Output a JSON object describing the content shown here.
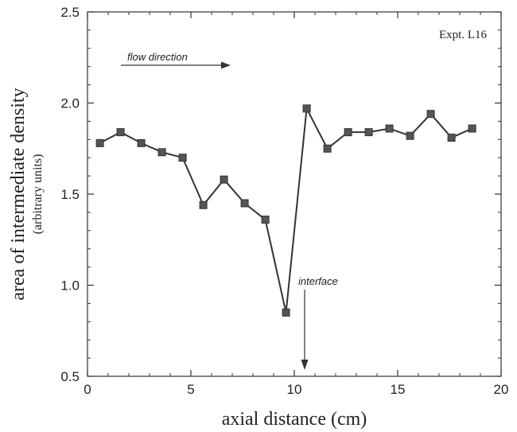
{
  "chart_data": {
    "type": "line",
    "xlabel": "axial distance  (cm)",
    "ylabel": "area of intermediate density",
    "ylabel_sub": "(arbitrary units)",
    "xlim": [
      0,
      20
    ],
    "ylim": [
      0.5,
      2.5
    ],
    "xticks": [
      "0",
      "5",
      "10",
      "15",
      "20"
    ],
    "yticks": [
      "0.5",
      "1.0",
      "1.5",
      "2.0",
      "2.5"
    ],
    "grid": false,
    "series": [
      {
        "marker": "square",
        "color": "#333333",
        "x": [
          0.6,
          1.6,
          2.6,
          3.6,
          4.6,
          5.6,
          6.6,
          7.6,
          8.6,
          9.6,
          10.6,
          11.6,
          12.6,
          13.6,
          14.6,
          15.6,
          16.6,
          17.6,
          18.6
        ],
        "y": [
          1.78,
          1.84,
          1.78,
          1.73,
          1.7,
          1.44,
          1.58,
          1.45,
          1.36,
          0.85,
          1.97,
          1.75,
          1.84,
          1.84,
          1.86,
          1.82,
          1.94,
          1.81,
          1.86
        ]
      }
    ],
    "annotations": {
      "experiment": "Expt. L16",
      "flow": "flow direction",
      "interface": "interface"
    }
  }
}
